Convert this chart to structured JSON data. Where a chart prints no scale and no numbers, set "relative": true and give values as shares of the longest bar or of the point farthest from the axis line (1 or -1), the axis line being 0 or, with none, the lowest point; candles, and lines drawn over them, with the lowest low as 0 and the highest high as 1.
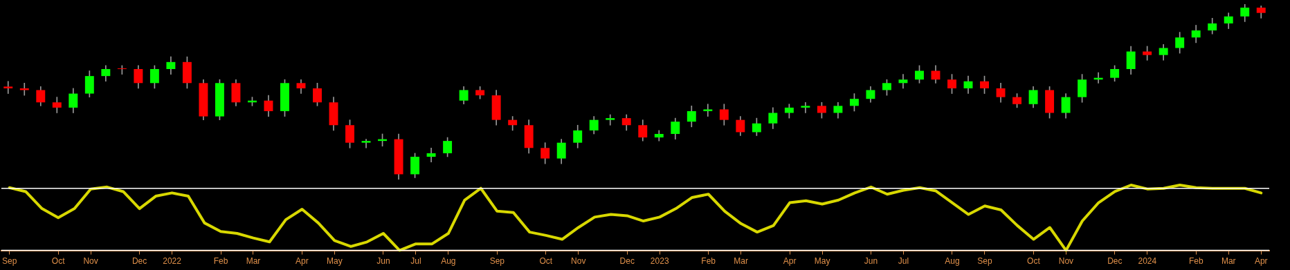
{
  "chart_data": [
    {
      "type": "candlestick",
      "relative": true,
      "tick_labels": false,
      "categories": [
        null,
        null,
        null,
        null,
        null,
        null,
        null,
        null,
        null,
        null,
        null,
        null,
        null,
        null,
        null,
        null,
        null,
        null,
        null,
        null,
        null,
        null,
        null,
        null,
        null,
        null,
        null,
        null,
        null,
        null,
        null,
        null,
        null,
        null,
        null,
        null,
        null,
        null,
        null,
        null,
        null,
        null,
        null,
        null,
        null,
        null,
        null,
        null,
        null,
        null,
        null,
        null,
        null,
        null,
        null,
        null,
        null,
        null,
        null,
        null,
        null,
        null,
        null,
        null,
        null,
        null,
        null,
        null,
        null,
        null,
        null,
        null,
        null,
        null,
        null,
        null,
        null,
        null
      ],
      "ohlc": [
        [
          0.53,
          0.56,
          0.49,
          0.52
        ],
        [
          0.52,
          0.55,
          0.48,
          0.51
        ],
        [
          0.51,
          0.53,
          0.42,
          0.44
        ],
        [
          0.44,
          0.47,
          0.38,
          0.41
        ],
        [
          0.41,
          0.52,
          0.38,
          0.49
        ],
        [
          0.49,
          0.62,
          0.47,
          0.59
        ],
        [
          0.59,
          0.65,
          0.56,
          0.63
        ],
        [
          0.63,
          0.65,
          0.6,
          0.63
        ],
        [
          0.63,
          0.65,
          0.52,
          0.55
        ],
        [
          0.55,
          0.65,
          0.52,
          0.63
        ],
        [
          0.63,
          0.7,
          0.6,
          0.67
        ],
        [
          0.67,
          0.7,
          0.52,
          0.55
        ],
        [
          0.55,
          0.57,
          0.34,
          0.36
        ],
        [
          0.36,
          0.57,
          0.34,
          0.55
        ],
        [
          0.55,
          0.57,
          0.42,
          0.44
        ],
        [
          0.44,
          0.47,
          0.42,
          0.45
        ],
        [
          0.45,
          0.48,
          0.36,
          0.39
        ],
        [
          0.39,
          0.57,
          0.36,
          0.55
        ],
        [
          0.55,
          0.57,
          0.49,
          0.52
        ],
        [
          0.52,
          0.55,
          0.42,
          0.44
        ],
        [
          0.44,
          0.47,
          0.28,
          0.31
        ],
        [
          0.31,
          0.34,
          0.18,
          0.21
        ],
        [
          0.21,
          0.23,
          0.18,
          0.22
        ],
        [
          0.22,
          0.26,
          0.19,
          0.23
        ],
        [
          0.23,
          0.26,
          0,
          0.03
        ],
        [
          0.03,
          0.15,
          0.01,
          0.13
        ],
        [
          0.13,
          0.18,
          0.1,
          0.15
        ],
        [
          0.15,
          0.24,
          0.13,
          0.22
        ],
        [
          0.45,
          0.53,
          0.43,
          0.51
        ],
        [
          0.51,
          0.53,
          0.46,
          0.48
        ],
        [
          0.48,
          0.51,
          0.31,
          0.34
        ],
        [
          0.34,
          0.36,
          0.28,
          0.31
        ],
        [
          0.31,
          0.34,
          0.15,
          0.18
        ],
        [
          0.18,
          0.21,
          0.09,
          0.12
        ],
        [
          0.12,
          0.23,
          0.09,
          0.21
        ],
        [
          0.21,
          0.31,
          0.18,
          0.28
        ],
        [
          0.28,
          0.36,
          0.26,
          0.34
        ],
        [
          0.34,
          0.37,
          0.31,
          0.35
        ],
        [
          0.35,
          0.37,
          0.28,
          0.31
        ],
        [
          0.31,
          0.34,
          0.22,
          0.24
        ],
        [
          0.24,
          0.28,
          0.22,
          0.26
        ],
        [
          0.26,
          0.35,
          0.23,
          0.33
        ],
        [
          0.33,
          0.42,
          0.3,
          0.39
        ],
        [
          0.39,
          0.43,
          0.36,
          0.4
        ],
        [
          0.4,
          0.43,
          0.31,
          0.34
        ],
        [
          0.34,
          0.36,
          0.25,
          0.27
        ],
        [
          0.27,
          0.35,
          0.25,
          0.32
        ],
        [
          0.32,
          0.41,
          0.29,
          0.38
        ],
        [
          0.38,
          0.43,
          0.35,
          0.41
        ],
        [
          0.41,
          0.44,
          0.38,
          0.42
        ],
        [
          0.42,
          0.44,
          0.35,
          0.38
        ],
        [
          0.38,
          0.44,
          0.35,
          0.42
        ],
        [
          0.42,
          0.49,
          0.39,
          0.46
        ],
        [
          0.46,
          0.53,
          0.44,
          0.51
        ],
        [
          0.51,
          0.57,
          0.48,
          0.55
        ],
        [
          0.55,
          0.6,
          0.52,
          0.57
        ],
        [
          0.57,
          0.65,
          0.55,
          0.62
        ],
        [
          0.62,
          0.65,
          0.55,
          0.57
        ],
        [
          0.57,
          0.6,
          0.49,
          0.52
        ],
        [
          0.52,
          0.59,
          0.49,
          0.56
        ],
        [
          0.56,
          0.59,
          0.49,
          0.52
        ],
        [
          0.52,
          0.55,
          0.44,
          0.47
        ],
        [
          0.47,
          0.49,
          0.41,
          0.43
        ],
        [
          0.43,
          0.53,
          0.41,
          0.51
        ],
        [
          0.51,
          0.53,
          0.35,
          0.38
        ],
        [
          0.38,
          0.49,
          0.35,
          0.47
        ],
        [
          0.47,
          0.6,
          0.44,
          0.57
        ],
        [
          0.57,
          0.61,
          0.55,
          0.58
        ],
        [
          0.58,
          0.65,
          0.56,
          0.63
        ],
        [
          0.63,
          0.76,
          0.6,
          0.73
        ],
        [
          0.73,
          0.76,
          0.68,
          0.71
        ],
        [
          0.71,
          0.77,
          0.68,
          0.75
        ],
        [
          0.75,
          0.84,
          0.72,
          0.81
        ],
        [
          0.81,
          0.88,
          0.78,
          0.85
        ],
        [
          0.85,
          0.92,
          0.83,
          0.89
        ],
        [
          0.89,
          0.95,
          0.86,
          0.93
        ],
        [
          0.93,
          1,
          0.9,
          0.98
        ],
        [
          0.98,
          0.99,
          0.92,
          0.95
        ]
      ],
      "colors": [
        "#ff0000",
        "#ff0000",
        "#ff0000",
        "#ff0000",
        "#00ff00",
        "#00ff00",
        "#00ff00",
        "#ff0000",
        "#ff0000",
        "#00ff00",
        "#00ff00",
        "#ff0000",
        "#ff0000",
        "#00ff00",
        "#ff0000",
        "#00ff00",
        "#ff0000",
        "#00ff00",
        "#ff0000",
        "#ff0000",
        "#ff0000",
        "#ff0000",
        "#00ff00",
        "#00ff00",
        "#ff0000",
        "#00ff00",
        "#00ff00",
        "#00ff00",
        "#00ff00",
        "#ff0000",
        "#ff0000",
        "#ff0000",
        "#ff0000",
        "#ff0000",
        "#00ff00",
        "#00ff00",
        "#00ff00",
        "#00ff00",
        "#ff0000",
        "#ff0000",
        "#00ff00",
        "#00ff00",
        "#00ff00",
        "#00ff00",
        "#ff0000",
        "#ff0000",
        "#00ff00",
        "#00ff00",
        "#00ff00",
        "#00ff00",
        "#ff0000",
        "#00ff00",
        "#00ff00",
        "#00ff00",
        "#00ff00",
        "#00ff00",
        "#00ff00",
        "#ff0000",
        "#ff0000",
        "#00ff00",
        "#ff0000",
        "#ff0000",
        "#ff0000",
        "#00ff00",
        "#ff0000",
        "#00ff00",
        "#00ff00",
        "#00ff00",
        "#00ff00",
        "#00ff00",
        "#ff0000",
        "#00ff00",
        "#00ff00",
        "#00ff00",
        "#00ff00",
        "#00ff00",
        "#00ff00",
        "#ff0000"
      ]
    },
    {
      "type": "line",
      "relative": true,
      "marker": "none",
      "color": "#d8d800",
      "categories": [
        "Sep",
        null,
        null,
        "Oct",
        null,
        "Nov",
        null,
        null,
        "Dec",
        null,
        "2022",
        null,
        null,
        "Feb",
        null,
        "Mar",
        null,
        null,
        "Apr",
        null,
        "May",
        null,
        null,
        "Jun",
        null,
        "Jul",
        null,
        "Aug",
        null,
        null,
        "Sep",
        null,
        null,
        "Oct",
        null,
        "Nov",
        null,
        null,
        "Dec",
        null,
        "2023",
        null,
        null,
        "Feb",
        null,
        "Mar",
        null,
        null,
        "Apr",
        null,
        "May",
        null,
        null,
        "Jun",
        null,
        "Jul",
        null,
        null,
        "Aug",
        null,
        "Sep",
        null,
        null,
        "Oct",
        null,
        "Nov",
        null,
        null,
        "Dec",
        null,
        "2024",
        null,
        null,
        "Feb",
        null,
        "Mar",
        null,
        "Apr"
      ],
      "values": [
        0.96,
        0.9,
        0.64,
        0.5,
        0.64,
        0.94,
        0.97,
        0.9,
        0.64,
        0.83,
        0.88,
        0.83,
        0.42,
        0.29,
        0.26,
        0.19,
        0.13,
        0.47,
        0.63,
        0.42,
        0.15,
        0.06,
        0.13,
        0.26,
        0,
        0.1,
        0.1,
        0.26,
        0.77,
        0.95,
        0.6,
        0.58,
        0.28,
        0.23,
        0.17,
        0.35,
        0.51,
        0.55,
        0.53,
        0.45,
        0.51,
        0.64,
        0.81,
        0.86,
        0.6,
        0.41,
        0.28,
        0.38,
        0.73,
        0.76,
        0.71,
        0.77,
        0.88,
        0.97,
        0.86,
        0.92,
        0.96,
        0.91,
        0.73,
        0.55,
        0.68,
        0.62,
        0.38,
        0.17,
        0.35,
        0,
        0.45,
        0.73,
        0.9,
        1,
        0.94,
        0.95,
        1,
        0.96,
        0.95,
        0.95,
        0.95,
        0.88
      ],
      "ref_lines": [
        {
          "axis": "y",
          "value": 0.95,
          "color": "#ffffff"
        },
        {
          "axis": "y",
          "value": 0,
          "color": "#ffffff"
        }
      ]
    }
  ]
}
